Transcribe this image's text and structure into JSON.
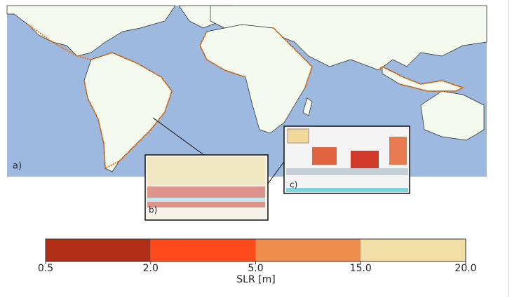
{
  "panels": {
    "a": "a)",
    "b": "b)",
    "c": "c)"
  },
  "colorbar": {
    "label": "SLR [m]",
    "ticks": [
      {
        "value": 0.5,
        "label": "0.5"
      },
      {
        "value": 2,
        "label": "2.0"
      },
      {
        "value": 5,
        "label": "5.0"
      },
      {
        "value": 15,
        "label": "15.0"
      },
      {
        "value": 20,
        "label": "20.0"
      }
    ],
    "colors": [
      "#b02e16",
      "#fc4a1a",
      "#f08c4e",
      "#f2dfa8"
    ]
  }
}
